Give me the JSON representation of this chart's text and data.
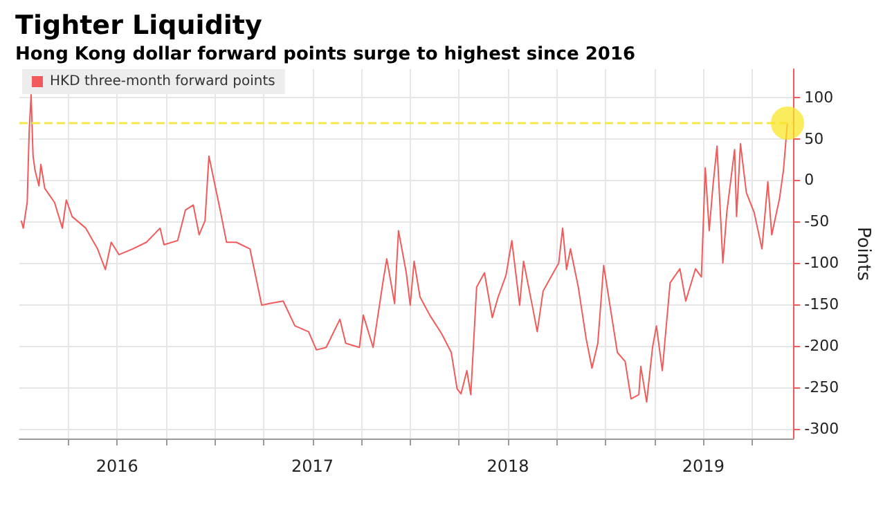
{
  "chart_data": {
    "type": "line",
    "title": "Tighter Liquidity",
    "subtitle": "Hong Kong dollar forward points surge to highest since 2016",
    "ylabel": "Points",
    "x": [
      2016.01,
      2016.02,
      2016.04,
      2016.05,
      2016.06,
      2016.07,
      2016.08,
      2016.1,
      2016.11,
      2016.13,
      2016.18,
      2016.22,
      2016.24,
      2016.27,
      2016.34,
      2016.4,
      2016.44,
      2016.47,
      2016.51,
      2016.58,
      2016.65,
      2016.72,
      2016.74,
      2016.81,
      2016.85,
      2016.89,
      2016.92,
      2016.95,
      2016.97,
      2017.0,
      2017.03,
      2017.06,
      2017.11,
      2017.18,
      2017.24,
      2017.28,
      2017.35,
      2017.41,
      2017.48,
      2017.52,
      2017.57,
      2017.64,
      2017.67,
      2017.74,
      2017.76,
      2017.81,
      2017.86,
      2017.88,
      2017.92,
      2017.94,
      2017.98,
      2018.0,
      2018.02,
      2018.05,
      2018.1,
      2018.16,
      2018.21,
      2018.24,
      2018.26,
      2018.29,
      2018.31,
      2018.34,
      2018.38,
      2018.42,
      2018.45,
      2018.49,
      2018.52,
      2018.56,
      2018.58,
      2018.63,
      2018.65,
      2018.68,
      2018.72,
      2018.76,
      2018.78,
      2018.8,
      2018.82,
      2018.86,
      2018.9,
      2018.93,
      2018.96,
      2018.99,
      2019.03,
      2019.06,
      2019.1,
      2019.13,
      2019.17,
      2019.18,
      2019.21,
      2019.24,
      2019.26,
      2019.29,
      2019.33,
      2019.38,
      2019.41,
      2019.46,
      2019.49,
      2019.51,
      2019.53,
      2019.55,
      2019.57,
      2019.6,
      2019.62,
      2019.66,
      2019.67,
      2019.69,
      2019.72,
      2019.76,
      2019.8,
      2019.83,
      2019.85,
      2019.89,
      2019.91,
      2019.93
    ],
    "series": [
      {
        "name": "HKD three-month forward points",
        "color": "#f05a5a",
        "values": [
          -49,
          -58,
          -27,
          58,
          103,
          29,
          12,
          -7,
          19,
          -10,
          -27,
          -58,
          -24,
          -44,
          -58,
          -83,
          -108,
          -75,
          -90,
          -83,
          -75,
          -58,
          -78,
          -73,
          -36,
          -30,
          -66,
          -49,
          29,
          -5,
          -39,
          -75,
          -75,
          -83,
          -151,
          -149,
          -146,
          -176,
          -183,
          -205,
          -202,
          -168,
          -197,
          -202,
          -163,
          -202,
          -124,
          -95,
          -149,
          -61,
          -112,
          -151,
          -98,
          -141,
          -163,
          -185,
          -208,
          -252,
          -258,
          -230,
          -259,
          -129,
          -112,
          -166,
          -141,
          -115,
          -73,
          -151,
          -98,
          -158,
          -183,
          -134,
          -117,
          -100,
          -58,
          -108,
          -83,
          -129,
          -191,
          -227,
          -197,
          -103,
          -163,
          -208,
          -219,
          -264,
          -259,
          -225,
          -268,
          -202,
          -176,
          -230,
          -124,
          -107,
          -146,
          -107,
          -117,
          15,
          -61,
          -5,
          41,
          -100,
          -39,
          37,
          -44,
          44,
          -15,
          -39,
          -83,
          -2,
          -66,
          -22,
          12,
          69
        ]
      }
    ],
    "xlim": [
      2016.0,
      2019.96
    ],
    "xticks": [
      {
        "value": 2016.25,
        "label": null
      },
      {
        "value": 2016.5,
        "label": "2016"
      },
      {
        "value": 2016.75,
        "label": null
      },
      {
        "value": 2017,
        "label": null
      },
      {
        "value": 2017.25,
        "label": null
      },
      {
        "value": 2017.5,
        "label": "2017"
      },
      {
        "value": 2017.75,
        "label": null
      },
      {
        "value": 2018,
        "label": null
      },
      {
        "value": 2018.25,
        "label": null
      },
      {
        "value": 2018.5,
        "label": "2018"
      },
      {
        "value": 2018.75,
        "label": null
      },
      {
        "value": 2019,
        "label": null
      },
      {
        "value": 2019.25,
        "label": null
      },
      {
        "value": 2019.5,
        "label": "2019"
      },
      {
        "value": 2019.75,
        "label": null
      }
    ],
    "ylim": [
      -312,
      134
    ],
    "yticks": [
      -300,
      -250,
      -200,
      -150,
      -100,
      -50,
      0,
      50,
      100
    ],
    "ref_lines": [
      {
        "axis": "y",
        "value": 70,
        "label": null,
        "color": "#f2e84a",
        "line_style": "dashed"
      }
    ],
    "grid": true,
    "legend": "top left",
    "marker": "none",
    "line_style": "solid"
  }
}
